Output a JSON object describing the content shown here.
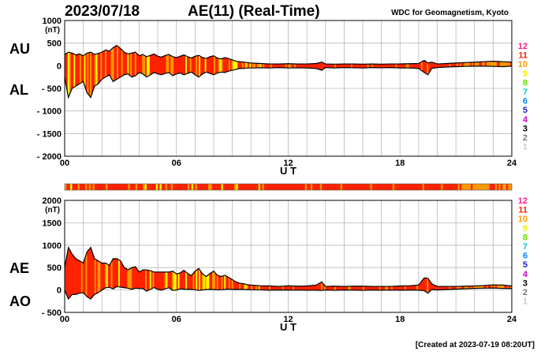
{
  "header": {
    "date": "2023/07/18",
    "index_title": "AE(11) (Real-Time)",
    "source": "WDC for Geomagnetism, Kyoto"
  },
  "footer": {
    "created": "[Created at 2023-07-19 08:20UT]"
  },
  "colors": {
    "red": "#ff2200",
    "orange": "#ff9900",
    "yellow": "#ffff00",
    "grid": "#b8b8b8",
    "line": "#000000"
  },
  "legend_numbers": [
    {
      "label": "12",
      "color": "#ff2288"
    },
    {
      "label": "11",
      "color": "#ff2200"
    },
    {
      "label": "10",
      "color": "#ff9900"
    },
    {
      "label": "9",
      "color": "#eeee00"
    },
    {
      "label": "8",
      "color": "#66dd00"
    },
    {
      "label": "7",
      "color": "#00cccc"
    },
    {
      "label": "6",
      "color": "#0088ff"
    },
    {
      "label": "5",
      "color": "#2222cc"
    },
    {
      "label": "4",
      "color": "#cc00cc"
    },
    {
      "label": "3",
      "color": "#000000"
    },
    {
      "label": "2",
      "color": "#777777"
    },
    {
      "label": "1",
      "color": "#cccccc"
    }
  ],
  "chart_data": [
    {
      "type": "area",
      "panel": "top",
      "series_labels": [
        "AU",
        "AL"
      ],
      "unit": "(nT)",
      "xlabel": "U T",
      "x_ticks": [
        "00",
        "06",
        "12",
        "18",
        "24"
      ],
      "xlim": [
        0,
        24
      ],
      "ylim": [
        -2000,
        1000
      ],
      "y_ticks": [
        "1000",
        "500",
        "0",
        "- 500",
        "- 1000",
        "- 1500",
        "- 2000"
      ],
      "grid": true,
      "x": [
        0,
        0.2,
        0.4,
        0.6,
        0.8,
        1.0,
        1.2,
        1.4,
        1.6,
        1.8,
        2.0,
        2.2,
        2.4,
        2.6,
        2.8,
        3.0,
        3.2,
        3.4,
        3.6,
        3.8,
        4.0,
        4.2,
        4.4,
        4.6,
        4.8,
        5.0,
        5.2,
        5.4,
        5.6,
        5.8,
        6.0,
        6.2,
        6.4,
        6.6,
        6.8,
        7.0,
        7.2,
        7.4,
        7.6,
        7.8,
        8.0,
        8.2,
        8.4,
        8.6,
        8.8,
        9.0,
        9.2,
        9.4,
        9.6,
        9.8,
        10.0,
        10.5,
        11.0,
        11.5,
        12.0,
        12.5,
        13.0,
        13.5,
        13.8,
        14.0,
        14.5,
        15.0,
        15.5,
        16.0,
        16.5,
        17.0,
        17.5,
        18.0,
        18.5,
        19.0,
        19.3,
        19.5,
        19.7,
        20.0,
        20.5,
        21.0,
        21.5,
        22.0,
        22.5,
        23.0,
        23.5,
        24.0
      ],
      "series": [
        {
          "name": "AU",
          "values": [
            250,
            300,
            280,
            240,
            260,
            220,
            280,
            300,
            250,
            270,
            300,
            350,
            320,
            400,
            450,
            380,
            300,
            260,
            280,
            300,
            220,
            250,
            200,
            230,
            260,
            210,
            190,
            230,
            250,
            200,
            180,
            210,
            240,
            200,
            170,
            210,
            230,
            180,
            160,
            200,
            220,
            170,
            150,
            180,
            160,
            130,
            100,
            90,
            80,
            70,
            60,
            50,
            40,
            40,
            45,
            40,
            40,
            50,
            80,
            40,
            35,
            40,
            40,
            35,
            40,
            35,
            40,
            40,
            45,
            50,
            120,
            60,
            80,
            40,
            50,
            60,
            70,
            80,
            90,
            100,
            90,
            80
          ]
        },
        {
          "name": "AL",
          "values": [
            -250,
            -700,
            -500,
            -450,
            -400,
            -350,
            -600,
            -700,
            -450,
            -400,
            -300,
            -250,
            -200,
            -350,
            -300,
            -250,
            -200,
            -180,
            -250,
            -220,
            -150,
            -180,
            -250,
            -200,
            -150,
            -180,
            -200,
            -170,
            -150,
            -220,
            -180,
            -160,
            -200,
            -170,
            -140,
            -200,
            -250,
            -180,
            -140,
            -170,
            -200,
            -160,
            -140,
            -150,
            -120,
            -100,
            -80,
            -60,
            -60,
            -50,
            -50,
            -45,
            -50,
            -40,
            -50,
            -45,
            -50,
            -60,
            -100,
            -40,
            -50,
            -40,
            -45,
            -50,
            -40,
            -45,
            -40,
            -50,
            -50,
            -60,
            -150,
            -200,
            -60,
            -40,
            -30,
            -20,
            -15,
            -10,
            -10,
            -15,
            -20,
            -10
          ]
        }
      ]
    },
    {
      "type": "area",
      "panel": "bottom",
      "series_labels": [
        "AE",
        "AO"
      ],
      "unit": "(nT)",
      "xlabel": "U T",
      "x_ticks": [
        "00",
        "06",
        "12",
        "18",
        "24"
      ],
      "xlim": [
        0,
        24
      ],
      "ylim": [
        -500,
        2000
      ],
      "y_ticks": [
        "2000",
        "1500",
        "1000",
        "500",
        "0",
        "- 500"
      ],
      "grid": true,
      "x": [
        0,
        0.2,
        0.4,
        0.6,
        0.8,
        1.0,
        1.2,
        1.4,
        1.6,
        1.8,
        2.0,
        2.2,
        2.4,
        2.6,
        2.8,
        3.0,
        3.2,
        3.4,
        3.6,
        3.8,
        4.0,
        4.2,
        4.4,
        4.6,
        4.8,
        5.0,
        5.2,
        5.4,
        5.6,
        5.8,
        6.0,
        6.2,
        6.4,
        6.6,
        6.8,
        7.0,
        7.2,
        7.4,
        7.6,
        7.8,
        8.0,
        8.2,
        8.4,
        8.6,
        8.8,
        9.0,
        9.2,
        9.4,
        9.6,
        9.8,
        10.0,
        10.5,
        11.0,
        11.5,
        12.0,
        12.5,
        13.0,
        13.5,
        13.8,
        14.0,
        14.5,
        15.0,
        15.5,
        16.0,
        16.5,
        17.0,
        17.5,
        18.0,
        18.5,
        19.0,
        19.3,
        19.5,
        19.7,
        20.0,
        20.5,
        21.0,
        21.5,
        22.0,
        22.5,
        23.0,
        23.5,
        24.0
      ],
      "series": [
        {
          "name": "AE",
          "values": [
            500,
            950,
            800,
            700,
            650,
            600,
            850,
            950,
            700,
            650,
            600,
            600,
            550,
            700,
            700,
            650,
            500,
            450,
            500,
            520,
            400,
            450,
            450,
            430,
            400,
            400,
            400,
            400,
            400,
            420,
            360,
            380,
            440,
            370,
            320,
            420,
            480,
            360,
            300,
            370,
            420,
            330,
            300,
            330,
            280,
            230,
            180,
            150,
            140,
            120,
            110,
            95,
            90,
            80,
            95,
            85,
            90,
            110,
            180,
            80,
            85,
            80,
            85,
            85,
            80,
            80,
            80,
            90,
            95,
            110,
            270,
            260,
            140,
            80,
            80,
            80,
            85,
            90,
            100,
            115,
            110,
            90
          ]
        },
        {
          "name": "AO",
          "values": [
            0,
            -200,
            -100,
            -100,
            -70,
            -60,
            -150,
            -200,
            -100,
            -60,
            0,
            50,
            60,
            25,
            75,
            65,
            50,
            40,
            15,
            40,
            35,
            35,
            -25,
            15,
            55,
            15,
            -5,
            30,
            50,
            -10,
            0,
            25,
            20,
            15,
            15,
            5,
            -10,
            0,
            10,
            15,
            10,
            5,
            5,
            15,
            20,
            15,
            10,
            15,
            10,
            10,
            5,
            3,
            -5,
            0,
            -3,
            -3,
            -5,
            -5,
            -10,
            0,
            -8,
            0,
            -3,
            -8,
            0,
            -5,
            0,
            -5,
            -3,
            -5,
            -15,
            -70,
            10,
            0,
            10,
            20,
            28,
            35,
            40,
            43,
            35,
            35
          ]
        }
      ]
    }
  ]
}
